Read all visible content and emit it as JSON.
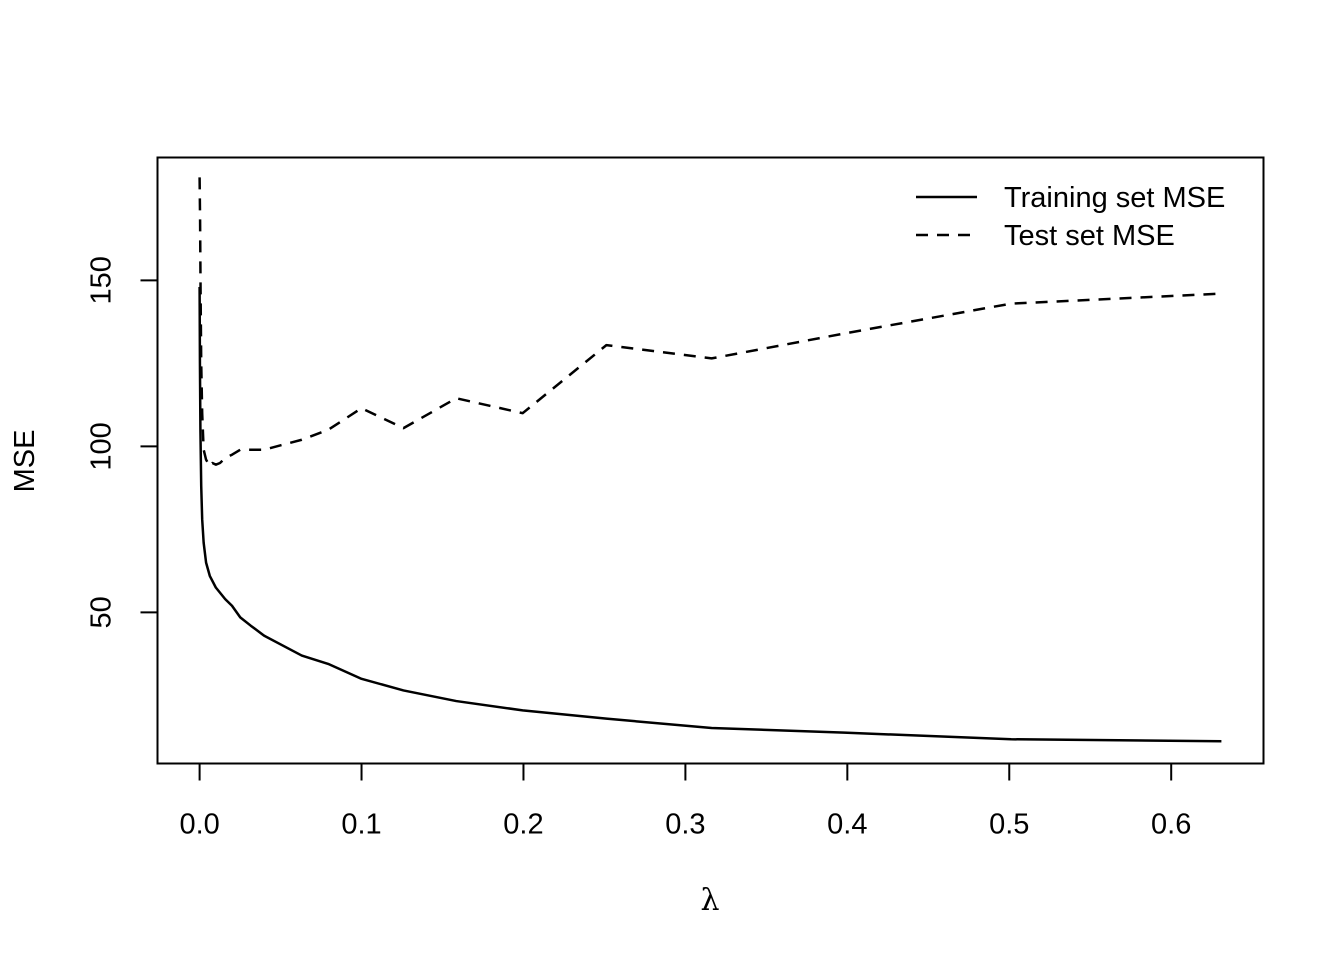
{
  "chart_data": {
    "type": "line",
    "title": "",
    "xlabel": "λ",
    "ylabel": "MSE",
    "xlim": [
      -0.026,
      0.657
    ],
    "ylim": [
      4.5,
      187
    ],
    "x_ticks": [
      0.0,
      0.1,
      0.2,
      0.3,
      0.4,
      0.5,
      0.6
    ],
    "x_tick_labels": [
      "0.0",
      "0.1",
      "0.2",
      "0.3",
      "0.4",
      "0.5",
      "0.6"
    ],
    "y_ticks": [
      50,
      100,
      150
    ],
    "y_tick_labels": [
      "50",
      "100",
      "150"
    ],
    "grid": false,
    "legend_position": "top-right",
    "series": [
      {
        "name": "Training set MSE",
        "line_style": "solid",
        "color": "#000000",
        "x": [
          0.0,
          0.0002,
          0.0005,
          0.001,
          0.0016,
          0.0025,
          0.004,
          0.0063,
          0.01,
          0.0158,
          0.02,
          0.0251,
          0.0316,
          0.0398,
          0.0631,
          0.0794,
          0.1,
          0.1259,
          0.1585,
          0.1995,
          0.2512,
          0.3162,
          0.3981,
          0.5012,
          0.631
        ],
        "values": [
          148,
          125,
          105,
          88,
          78,
          71,
          65,
          61,
          57.5,
          54,
          52,
          48.5,
          46,
          43,
          37,
          34.5,
          30,
          26.5,
          23.3,
          20.5,
          18,
          15.2,
          13.8,
          11.8,
          11.2
        ]
      },
      {
        "name": "Test set MSE",
        "line_style": "dashed",
        "color": "#000000",
        "x": [
          0.0,
          0.0003,
          0.0006,
          0.001,
          0.0016,
          0.0025,
          0.004,
          0.0063,
          0.0079,
          0.01,
          0.0126,
          0.0158,
          0.02,
          0.0251,
          0.0398,
          0.0631,
          0.0794,
          0.1,
          0.1259,
          0.1585,
          0.1995,
          0.2512,
          0.3162,
          0.3981,
          0.5012,
          0.631
        ],
        "values": [
          181,
          168,
          147,
          125,
          110,
          99,
          96,
          94,
          95,
          94.5,
          95,
          96.5,
          97.5,
          99,
          99,
          102,
          105,
          111.5,
          105.5,
          114.5,
          110,
          130.5,
          126.5,
          134,
          143,
          146
        ]
      }
    ]
  }
}
